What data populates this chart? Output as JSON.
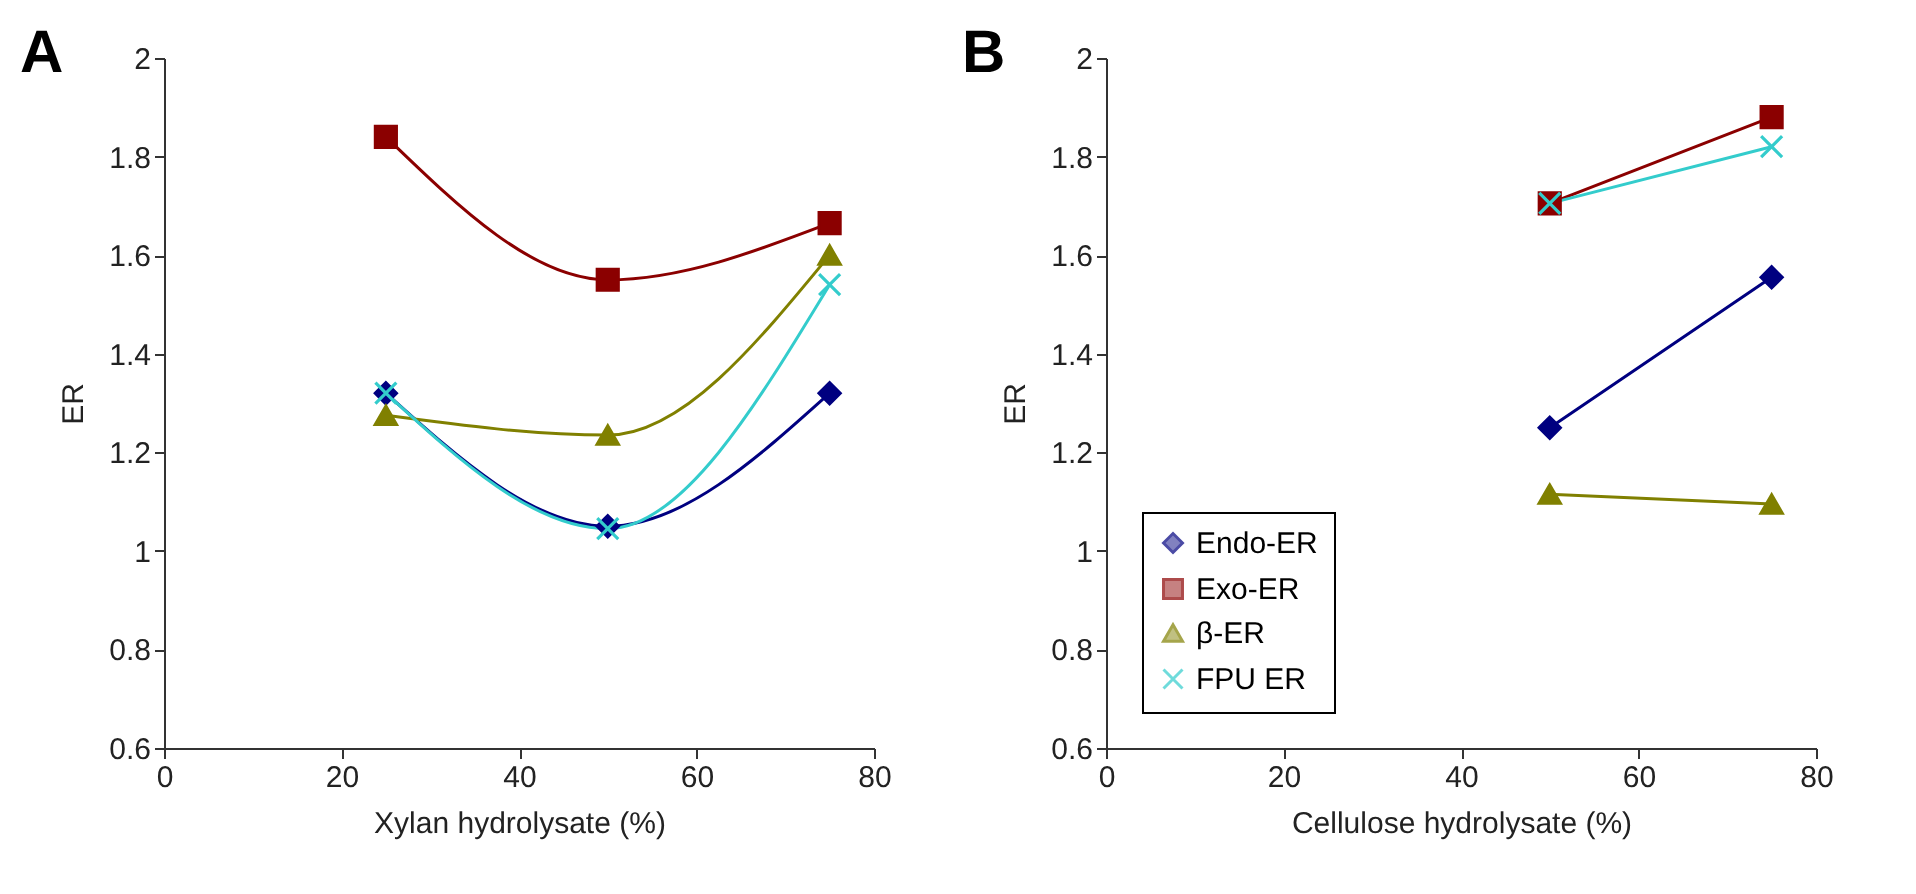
{
  "chart_data": [
    {
      "type": "line",
      "title": "A",
      "xlabel": "Xylan hydrolysate (%)",
      "ylabel": "ER",
      "x": [
        25,
        50,
        75
      ],
      "xlim": [
        0,
        80
      ],
      "xticks": [
        0,
        20,
        40,
        60,
        80
      ],
      "ylim": [
        0.6,
        2
      ],
      "yticks": [
        0.6,
        0.8,
        1,
        1.2,
        1.4,
        1.6,
        1.8,
        2
      ],
      "grid": false,
      "legend": false,
      "series": [
        {
          "color": "#000080",
          "marker": "diamond",
          "values": [
            1.32,
            1.05,
            1.32
          ]
        },
        {
          "color": "#8b0000",
          "marker": "square",
          "values": [
            1.84,
            1.55,
            1.665
          ]
        },
        {
          "color": "#808000",
          "marker": "triangle",
          "values": [
            1.275,
            1.235,
            1.6
          ]
        },
        {
          "color": "#33cccc",
          "marker": "cross",
          "values": [
            1.32,
            1.045,
            1.54
          ]
        }
      ]
    },
    {
      "type": "line",
      "title": "B",
      "xlabel": "Cellulose hydrolysate (%)",
      "ylabel": "ER",
      "x": [
        50,
        75
      ],
      "xlim": [
        0,
        80
      ],
      "xticks": [
        0,
        20,
        40,
        60,
        80
      ],
      "ylim": [
        0.6,
        2
      ],
      "yticks": [
        0.6,
        0.8,
        1,
        1.2,
        1.4,
        1.6,
        1.8,
        2
      ],
      "grid": false,
      "legend": "bottom left",
      "series": [
        {
          "name": "Endo-ER",
          "color": "#000080",
          "marker": "diamond",
          "values": [
            1.25,
            1.555
          ]
        },
        {
          "name": "Exo-ER",
          "color": "#8b0000",
          "marker": "square",
          "values": [
            1.705,
            1.88
          ]
        },
        {
          "name": "β-ER",
          "color": "#808000",
          "marker": "triangle",
          "values": [
            1.115,
            1.095
          ]
        },
        {
          "name": "FPU ER",
          "color": "#33cccc",
          "marker": "cross",
          "values": [
            1.705,
            1.82
          ]
        }
      ]
    }
  ]
}
